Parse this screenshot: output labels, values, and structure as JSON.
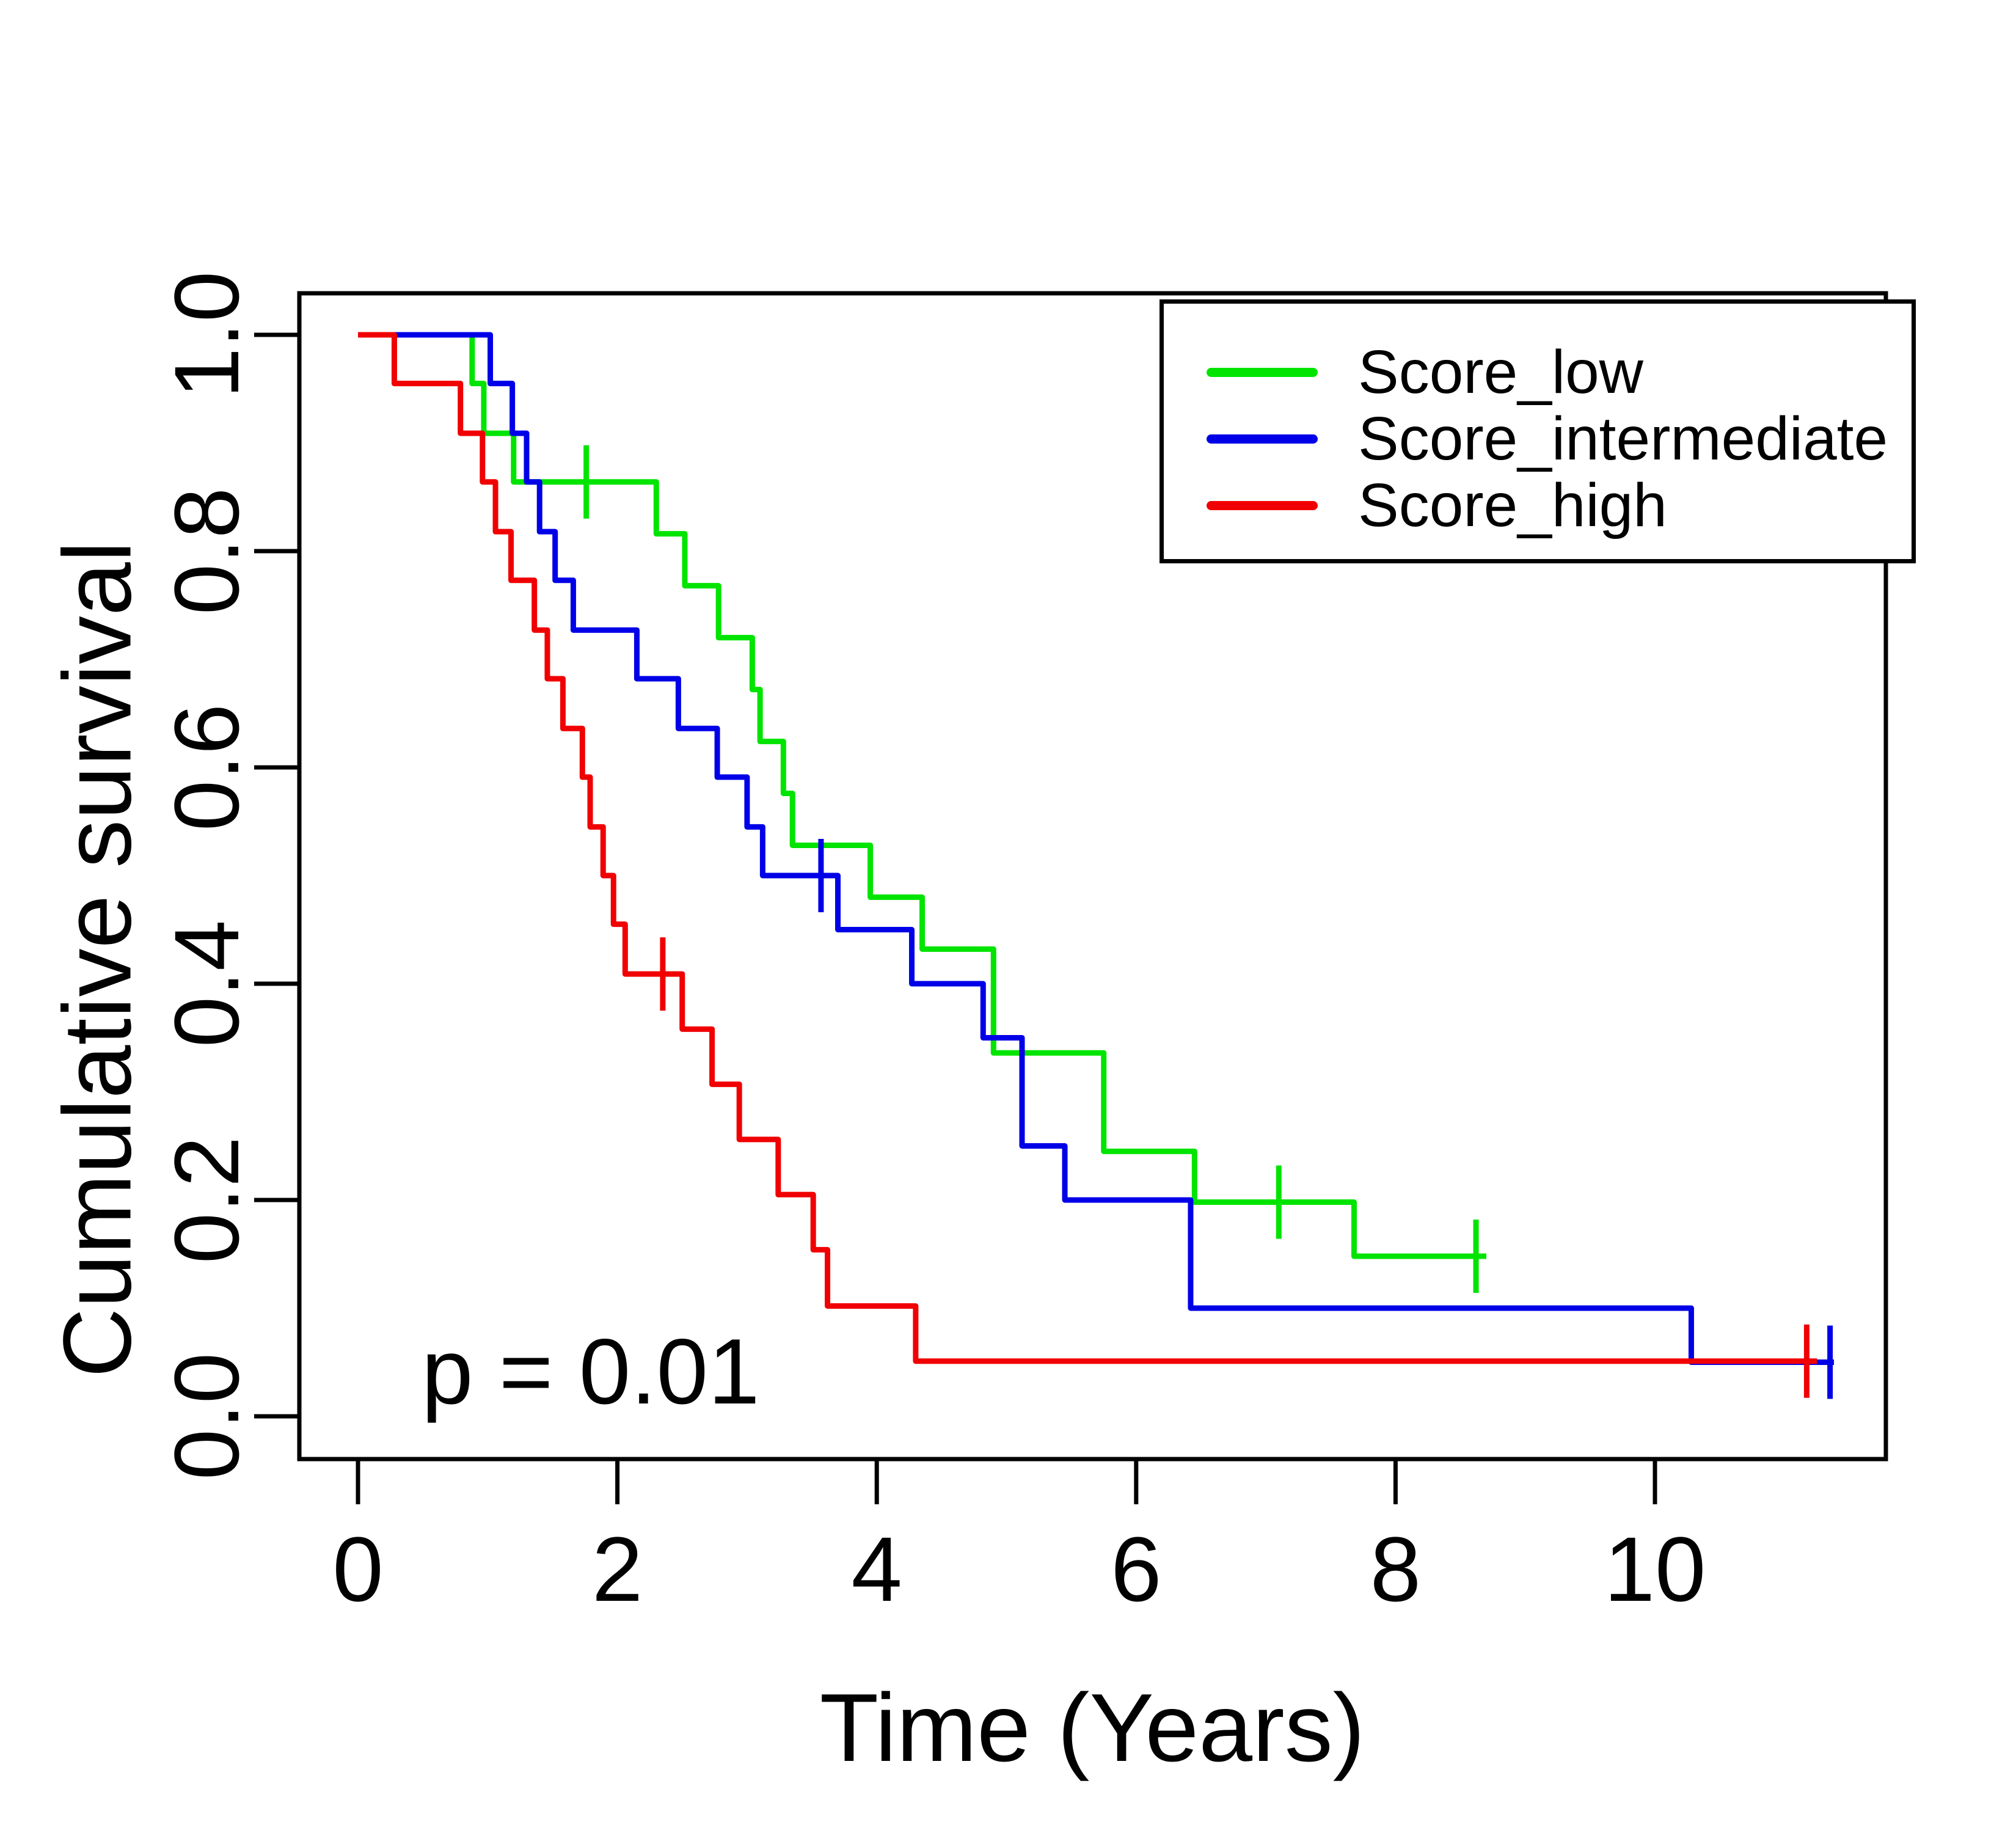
{
  "chart_data": {
    "type": "line",
    "subtype": "kaplan-meier-step-curves",
    "title": "",
    "xlabel": "Time (Years)",
    "ylabel": "Cumulative survival",
    "xlim": [
      -0.45,
      11.8
    ],
    "ylim": [
      -0.04,
      1.05
    ],
    "x_ticks": [
      0,
      2,
      4,
      6,
      8,
      10
    ],
    "y_ticks": [
      "0.0",
      "0.2",
      "0.4",
      "0.6",
      "0.8",
      "1.0"
    ],
    "grid": false,
    "legend_position": "top-right",
    "series": [
      {
        "name": "Score_low",
        "color": "#00E400",
        "start": [
          0,
          1.0
        ],
        "steps": [
          [
            0.88,
            0.955
          ],
          [
            0.97,
            0.909
          ],
          [
            1.2,
            0.864
          ],
          [
            2.3,
            0.816
          ],
          [
            2.52,
            0.768
          ],
          [
            2.78,
            0.72
          ],
          [
            3.04,
            0.672
          ],
          [
            3.1,
            0.624
          ],
          [
            3.28,
            0.576
          ],
          [
            3.35,
            0.528
          ],
          [
            3.95,
            0.48
          ],
          [
            4.35,
            0.432
          ],
          [
            4.9,
            0.336
          ],
          [
            5.75,
            0.245
          ],
          [
            6.45,
            0.198
          ],
          [
            7.68,
            0.148
          ]
        ],
        "end_time": 8.7,
        "censors": [
          [
            1.76,
            0.864
          ],
          [
            7.1,
            0.198
          ],
          [
            8.62,
            0.148
          ]
        ]
      },
      {
        "name": "Score_intermediate",
        "color": "#0000E8",
        "start": [
          0,
          1.0
        ],
        "steps": [
          [
            1.02,
            0.955
          ],
          [
            1.19,
            0.909
          ],
          [
            1.3,
            0.864
          ],
          [
            1.4,
            0.818
          ],
          [
            1.52,
            0.773
          ],
          [
            1.66,
            0.727
          ],
          [
            2.15,
            0.682
          ],
          [
            2.47,
            0.636
          ],
          [
            2.77,
            0.591
          ],
          [
            3.0,
            0.545
          ],
          [
            3.12,
            0.5
          ],
          [
            3.7,
            0.45
          ],
          [
            4.27,
            0.4
          ],
          [
            4.82,
            0.35
          ],
          [
            5.12,
            0.25
          ],
          [
            5.45,
            0.2
          ],
          [
            6.42,
            0.1
          ],
          [
            10.28,
            0.05
          ]
        ],
        "end_time": 11.38,
        "censors": [
          [
            3.57,
            0.5
          ],
          [
            11.35,
            0.05
          ]
        ]
      },
      {
        "name": "Score_high",
        "color": "#F00000",
        "start": [
          0,
          1.0
        ],
        "steps": [
          [
            0.28,
            0.955
          ],
          [
            0.79,
            0.909
          ],
          [
            0.96,
            0.864
          ],
          [
            1.06,
            0.818
          ],
          [
            1.18,
            0.773
          ],
          [
            1.36,
            0.727
          ],
          [
            1.46,
            0.682
          ],
          [
            1.58,
            0.636
          ],
          [
            1.73,
            0.591
          ],
          [
            1.79,
            0.545
          ],
          [
            1.89,
            0.5
          ],
          [
            1.97,
            0.455
          ],
          [
            2.06,
            0.409
          ],
          [
            2.5,
            0.358
          ],
          [
            2.73,
            0.307
          ],
          [
            2.94,
            0.256
          ],
          [
            3.24,
            0.205
          ],
          [
            3.51,
            0.154
          ],
          [
            3.62,
            0.102
          ],
          [
            4.3,
            0.051
          ]
        ],
        "end_time": 11.25,
        "censors": [
          [
            2.35,
            0.409
          ],
          [
            11.17,
            0.051
          ]
        ]
      }
    ],
    "annotation": {
      "text": "p = 0.01",
      "x": 0.51,
      "y": 0.019
    }
  }
}
